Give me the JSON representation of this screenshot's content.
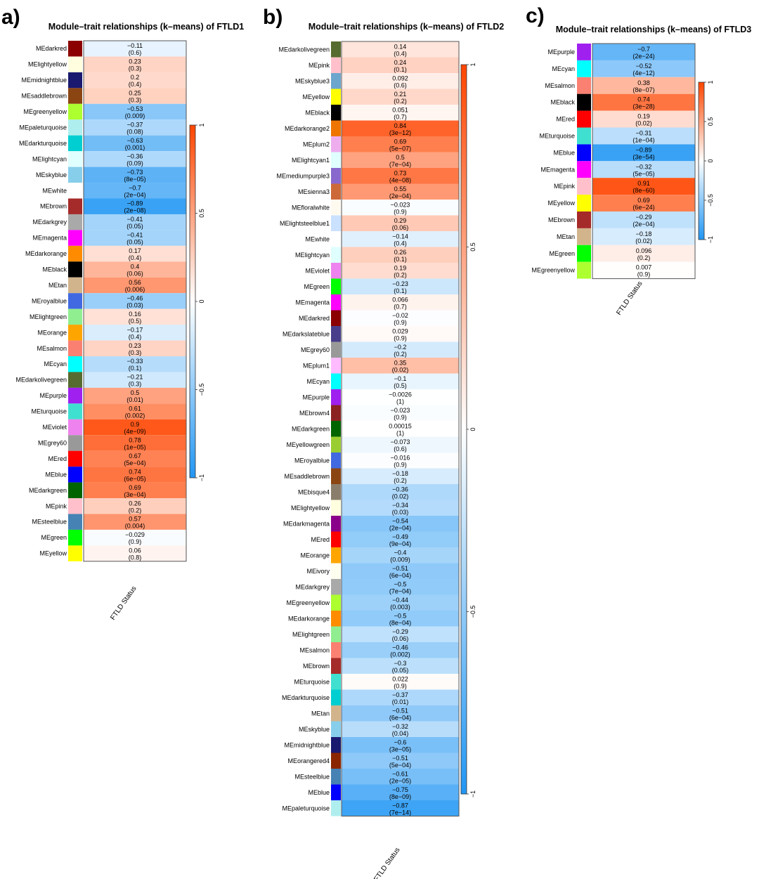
{
  "chart_data": [
    {
      "type": "heatmap",
      "panel_label": "a)",
      "title": "Module–trait relationships (k–means) of FTLD1",
      "xlabel": "FTLD Status",
      "colorbar": {
        "range": [
          -1,
          1
        ],
        "ticks": [
          "1",
          "0.5",
          "0",
          "−0.5",
          "−1"
        ]
      },
      "rows": [
        {
          "module": "MEdarkred",
          "color": "#8B0000",
          "r": -0.11,
          "r_label": "−0.11",
          "p": "(0.6)"
        },
        {
          "module": "MElightyellow",
          "color": "#FFFFE0",
          "r": 0.23,
          "r_label": "0.23",
          "p": "(0.3)"
        },
        {
          "module": "MEmidnightblue",
          "color": "#191970",
          "r": 0.2,
          "r_label": "0.2",
          "p": "(0.4)"
        },
        {
          "module": "MEsaddlebrown",
          "color": "#8B4513",
          "r": 0.25,
          "r_label": "0.25",
          "p": "(0.3)"
        },
        {
          "module": "MEgreenyellow",
          "color": "#ADFF2F",
          "r": -0.53,
          "r_label": "−0.53",
          "p": "(0.009)"
        },
        {
          "module": "MEpaleturquoise",
          "color": "#AFEEEE",
          "r": -0.37,
          "r_label": "−0.37",
          "p": "(0.08)"
        },
        {
          "module": "MEdarkturquoise",
          "color": "#00CED1",
          "r": -0.63,
          "r_label": "−0.63",
          "p": "(0.001)"
        },
        {
          "module": "MElightcyan",
          "color": "#E0FFFF",
          "r": -0.36,
          "r_label": "−0.36",
          "p": "(0.09)"
        },
        {
          "module": "MEskyblue",
          "color": "#87CEEB",
          "r": -0.73,
          "r_label": "−0.73",
          "p": "(8e−05)"
        },
        {
          "module": "MEwhite",
          "color": "#FFFFFF",
          "r": -0.7,
          "r_label": "−0.7",
          "p": "(2e−04)"
        },
        {
          "module": "MEbrown",
          "color": "#A52A2A",
          "r": -0.89,
          "r_label": "−0.89",
          "p": "(2e−08)"
        },
        {
          "module": "MEdarkgrey",
          "color": "#A9A9A9",
          "r": -0.41,
          "r_label": "−0.41",
          "p": "(0.05)"
        },
        {
          "module": "MEmagenta",
          "color": "#FF00FF",
          "r": -0.41,
          "r_label": "−0.41",
          "p": "(0.05)"
        },
        {
          "module": "MEdarkorange",
          "color": "#FF8C00",
          "r": 0.17,
          "r_label": "0.17",
          "p": "(0.4)"
        },
        {
          "module": "MEblack",
          "color": "#000000",
          "r": 0.4,
          "r_label": "0.4",
          "p": "(0.06)"
        },
        {
          "module": "MEtan",
          "color": "#D2B48C",
          "r": 0.56,
          "r_label": "0.56",
          "p": "(0.006)"
        },
        {
          "module": "MEroyalblue",
          "color": "#4169E1",
          "r": -0.46,
          "r_label": "−0.46",
          "p": "(0.03)"
        },
        {
          "module": "MElightgreen",
          "color": "#90EE90",
          "r": 0.16,
          "r_label": "0.16",
          "p": "(0.5)"
        },
        {
          "module": "MEorange",
          "color": "#FFA500",
          "r": -0.17,
          "r_label": "−0.17",
          "p": "(0.4)"
        },
        {
          "module": "MEsalmon",
          "color": "#FA8072",
          "r": 0.23,
          "r_label": "0.23",
          "p": "(0.3)"
        },
        {
          "module": "MEcyan",
          "color": "#00FFFF",
          "r": -0.33,
          "r_label": "−0.33",
          "p": "(0.1)"
        },
        {
          "module": "MEdarkolivegreen",
          "color": "#556B2F",
          "r": -0.21,
          "r_label": "−0.21",
          "p": "(0.3)"
        },
        {
          "module": "MEpurple",
          "color": "#A020F0",
          "r": 0.5,
          "r_label": "0.5",
          "p": "(0.01)"
        },
        {
          "module": "MEturquoise",
          "color": "#40E0D0",
          "r": 0.61,
          "r_label": "0.61",
          "p": "(0.002)"
        },
        {
          "module": "MEviolet",
          "color": "#EE82EE",
          "r": 0.9,
          "r_label": "0.9",
          "p": "(4e−09)"
        },
        {
          "module": "MEgrey60",
          "color": "#999999",
          "r": 0.78,
          "r_label": "0.78",
          "p": "(1e−05)"
        },
        {
          "module": "MEred",
          "color": "#FF0000",
          "r": 0.67,
          "r_label": "0.67",
          "p": "(5e−04)"
        },
        {
          "module": "MEblue",
          "color": "#0000FF",
          "r": 0.74,
          "r_label": "0.74",
          "p": "(6e−05)"
        },
        {
          "module": "MEdarkgreen",
          "color": "#006400",
          "r": 0.69,
          "r_label": "0.69",
          "p": "(3e−04)"
        },
        {
          "module": "MEpink",
          "color": "#FFC0CB",
          "r": 0.26,
          "r_label": "0.26",
          "p": "(0.2)"
        },
        {
          "module": "MEsteelblue",
          "color": "#4682B4",
          "r": 0.57,
          "r_label": "0.57",
          "p": "(0.004)"
        },
        {
          "module": "MEgreen",
          "color": "#00FF00",
          "r": -0.029,
          "r_label": "−0.029",
          "p": "(0.9)"
        },
        {
          "module": "MEyellow",
          "color": "#FFFF00",
          "r": 0.06,
          "r_label": "0.06",
          "p": "(0.8)"
        }
      ]
    },
    {
      "type": "heatmap",
      "panel_label": "b)",
      "title": "Module–trait relationships (k–means) of FTLD2",
      "xlabel": "FTLD Status",
      "colorbar": {
        "range": [
          -1,
          1
        ],
        "ticks": [
          "1",
          "0.5",
          "0",
          "−0.5",
          "−1"
        ]
      },
      "rows": [
        {
          "module": "MEdarkolivegreen",
          "color": "#556B2F",
          "r": 0.14,
          "r_label": "0.14",
          "p": "(0.4)"
        },
        {
          "module": "MEpink",
          "color": "#FFC0CB",
          "r": 0.24,
          "r_label": "0.24",
          "p": "(0.1)"
        },
        {
          "module": "MEskyblue3",
          "color": "#6CA6CD",
          "r": 0.092,
          "r_label": "0.092",
          "p": "(0.6)"
        },
        {
          "module": "MEyellow",
          "color": "#FFFF00",
          "r": 0.21,
          "r_label": "0.21",
          "p": "(0.2)"
        },
        {
          "module": "MEblack",
          "color": "#000000",
          "r": 0.051,
          "r_label": "0.051",
          "p": "(0.7)"
        },
        {
          "module": "MEdarkorange2",
          "color": "#EE7600",
          "r": 0.84,
          "r_label": "0.84",
          "p": "(3e−12)"
        },
        {
          "module": "MEplum2",
          "color": "#EEAEEE",
          "r": 0.69,
          "r_label": "0.69",
          "p": "(5e−07)"
        },
        {
          "module": "MElightcyan1",
          "color": "#E0FFFF",
          "r": 0.5,
          "r_label": "0.5",
          "p": "(7e−04)"
        },
        {
          "module": "MEmediumpurple3",
          "color": "#8968CD",
          "r": 0.73,
          "r_label": "0.73",
          "p": "(4e−08)"
        },
        {
          "module": "MEsienna3",
          "color": "#CD6839",
          "r": 0.55,
          "r_label": "0.55",
          "p": "(2e−04)"
        },
        {
          "module": "MEfloralwhite",
          "color": "#FFFAF0",
          "r": -0.023,
          "r_label": "−0.023",
          "p": "(0.9)"
        },
        {
          "module": "MElightsteelblue1",
          "color": "#CAE1FF",
          "r": 0.29,
          "r_label": "0.29",
          "p": "(0.06)"
        },
        {
          "module": "MEwhite",
          "color": "#FFFFFF",
          "r": -0.14,
          "r_label": "−0.14",
          "p": "(0.4)"
        },
        {
          "module": "MElightcyan",
          "color": "#E0FFFF",
          "r": 0.26,
          "r_label": "0.26",
          "p": "(0.1)"
        },
        {
          "module": "MEviolet",
          "color": "#EE82EE",
          "r": 0.19,
          "r_label": "0.19",
          "p": "(0.2)"
        },
        {
          "module": "MEgreen",
          "color": "#00FF00",
          "r": -0.23,
          "r_label": "−0.23",
          "p": "(0.1)"
        },
        {
          "module": "MEmagenta",
          "color": "#FF00FF",
          "r": 0.066,
          "r_label": "0.066",
          "p": "(0.7)"
        },
        {
          "module": "MEdarkred",
          "color": "#8B0000",
          "r": -0.02,
          "r_label": "−0.02",
          "p": "(0.9)"
        },
        {
          "module": "MEdarkslateblue",
          "color": "#483D8B",
          "r": 0.029,
          "r_label": "0.029",
          "p": "(0.9)"
        },
        {
          "module": "MEgrey60",
          "color": "#999999",
          "r": -0.2,
          "r_label": "−0.2",
          "p": "(0.2)"
        },
        {
          "module": "MEplum1",
          "color": "#FFBBFF",
          "r": 0.35,
          "r_label": "0.35",
          "p": "(0.02)"
        },
        {
          "module": "MEcyan",
          "color": "#00FFFF",
          "r": -0.1,
          "r_label": "−0.1",
          "p": "(0.5)"
        },
        {
          "module": "MEpurple",
          "color": "#A020F0",
          "r": -0.0026,
          "r_label": "−0.0026",
          "p": "(1)"
        },
        {
          "module": "MEbrown4",
          "color": "#8B2323",
          "r": -0.023,
          "r_label": "−0.023",
          "p": "(0.9)"
        },
        {
          "module": "MEdarkgreen",
          "color": "#006400",
          "r": 0.00015,
          "r_label": "0.00015",
          "p": "(1)"
        },
        {
          "module": "MEyellowgreen",
          "color": "#9ACD32",
          "r": -0.073,
          "r_label": "−0.073",
          "p": "(0.6)"
        },
        {
          "module": "MEroyalblue",
          "color": "#4169E1",
          "r": -0.016,
          "r_label": "−0.016",
          "p": "(0.9)"
        },
        {
          "module": "MEsaddlebrown",
          "color": "#8B4513",
          "r": -0.18,
          "r_label": "−0.18",
          "p": "(0.2)"
        },
        {
          "module": "MEbisque4",
          "color": "#8B7D6B",
          "r": -0.36,
          "r_label": "−0.36",
          "p": "(0.02)"
        },
        {
          "module": "MElightyellow",
          "color": "#FFFFE0",
          "r": -0.34,
          "r_label": "−0.34",
          "p": "(0.03)"
        },
        {
          "module": "MEdarkmagenta",
          "color": "#8B008B",
          "r": -0.54,
          "r_label": "−0.54",
          "p": "(2e−04)"
        },
        {
          "module": "MEred",
          "color": "#FF0000",
          "r": -0.49,
          "r_label": "−0.49",
          "p": "(9e−04)"
        },
        {
          "module": "MEorange",
          "color": "#FFA500",
          "r": -0.4,
          "r_label": "−0.4",
          "p": "(0.009)"
        },
        {
          "module": "MEivory",
          "color": "#FFFFF0",
          "r": -0.51,
          "r_label": "−0.51",
          "p": "(6e−04)"
        },
        {
          "module": "MEdarkgrey",
          "color": "#A9A9A9",
          "r": -0.5,
          "r_label": "−0.5",
          "p": "(7e−04)"
        },
        {
          "module": "MEgreenyellow",
          "color": "#ADFF2F",
          "r": -0.44,
          "r_label": "−0.44",
          "p": "(0.003)"
        },
        {
          "module": "MEdarkorange",
          "color": "#FF8C00",
          "r": -0.5,
          "r_label": "−0.5",
          "p": "(8e−04)"
        },
        {
          "module": "MElightgreen",
          "color": "#90EE90",
          "r": -0.29,
          "r_label": "−0.29",
          "p": "(0.06)"
        },
        {
          "module": "MEsalmon",
          "color": "#FA8072",
          "r": -0.46,
          "r_label": "−0.46",
          "p": "(0.002)"
        },
        {
          "module": "MEbrown",
          "color": "#A52A2A",
          "r": -0.3,
          "r_label": "−0.3",
          "p": "(0.05)"
        },
        {
          "module": "MEturquoise",
          "color": "#40E0D0",
          "r": 0.022,
          "r_label": "0.022",
          "p": "(0.9)"
        },
        {
          "module": "MEdarkturquoise",
          "color": "#00CED1",
          "r": -0.37,
          "r_label": "−0.37",
          "p": "(0.01)"
        },
        {
          "module": "MEtan",
          "color": "#D2B48C",
          "r": -0.51,
          "r_label": "−0.51",
          "p": "(6e−04)"
        },
        {
          "module": "MEskyblue",
          "color": "#87CEEB",
          "r": -0.32,
          "r_label": "−0.32",
          "p": "(0.04)"
        },
        {
          "module": "MEmidnightblue",
          "color": "#191970",
          "r": -0.6,
          "r_label": "−0.6",
          "p": "(3e−05)"
        },
        {
          "module": "MEorangered4",
          "color": "#8B2500",
          "r": -0.51,
          "r_label": "−0.51",
          "p": "(5e−04)"
        },
        {
          "module": "MEsteelblue",
          "color": "#4682B4",
          "r": -0.61,
          "r_label": "−0.61",
          "p": "(2e−05)"
        },
        {
          "module": "MEblue",
          "color": "#0000FF",
          "r": -0.75,
          "r_label": "−0.75",
          "p": "(8e−09)"
        },
        {
          "module": "MEpaleturquoise",
          "color": "#AFEEEE",
          "r": -0.87,
          "r_label": "−0.87",
          "p": "(7e−14)"
        }
      ]
    },
    {
      "type": "heatmap",
      "panel_label": "c)",
      "title": "Module–trait relationships (k–means) of FTLD3",
      "xlabel": "FTLD Status",
      "colorbar": {
        "range": [
          -1,
          1
        ],
        "ticks": [
          "1",
          "0.5",
          "0",
          "−0.5",
          "−1"
        ]
      },
      "rows": [
        {
          "module": "MEpurple",
          "color": "#A020F0",
          "r": -0.7,
          "r_label": "−0.7",
          "p": "(2e−24)"
        },
        {
          "module": "MEcyan",
          "color": "#00FFFF",
          "r": -0.52,
          "r_label": "−0.52",
          "p": "(4e−12)"
        },
        {
          "module": "MEsalmon",
          "color": "#FA8072",
          "r": 0.38,
          "r_label": "0.38",
          "p": "(8e−07)"
        },
        {
          "module": "MEblack",
          "color": "#000000",
          "r": 0.74,
          "r_label": "0.74",
          "p": "(3e−28)"
        },
        {
          "module": "MEred",
          "color": "#FF0000",
          "r": 0.19,
          "r_label": "0.19",
          "p": "(0.02)"
        },
        {
          "module": "MEturquoise",
          "color": "#40E0D0",
          "r": -0.31,
          "r_label": "−0.31",
          "p": "(1e−04)"
        },
        {
          "module": "MEblue",
          "color": "#0000FF",
          "r": -0.89,
          "r_label": "−0.89",
          "p": "(3e−54)"
        },
        {
          "module": "MEmagenta",
          "color": "#FF00FF",
          "r": -0.32,
          "r_label": "−0.32",
          "p": "(5e−05)"
        },
        {
          "module": "MEpink",
          "color": "#FFC0CB",
          "r": 0.91,
          "r_label": "0.91",
          "p": "(8e−60)"
        },
        {
          "module": "MEyellow",
          "color": "#FFFF00",
          "r": 0.69,
          "r_label": "0.69",
          "p": "(6e−24)"
        },
        {
          "module": "MEbrown",
          "color": "#A52A2A",
          "r": -0.29,
          "r_label": "−0.29",
          "p": "(2e−04)"
        },
        {
          "module": "MEtan",
          "color": "#D2B48C",
          "r": -0.18,
          "r_label": "−0.18",
          "p": "(0.02)"
        },
        {
          "module": "MEgreen",
          "color": "#00FF00",
          "r": 0.096,
          "r_label": "0.096",
          "p": "(0.2)"
        },
        {
          "module": "MEgreenyellow",
          "color": "#ADFF2F",
          "r": 0.007,
          "r_label": "0.007",
          "p": "(0.9)"
        }
      ]
    }
  ]
}
